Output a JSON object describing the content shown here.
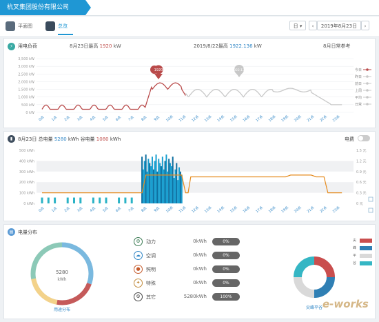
{
  "header": {
    "company": "杭叉集团股份有限公司"
  },
  "tabs": {
    "floor_plan": "平面图",
    "overview": "总览"
  },
  "date_picker": {
    "mode": "日",
    "date": "2019年8月23日",
    "prev": "‹",
    "next": "›"
  },
  "load_panel": {
    "title": "用电负荷",
    "peak_today": {
      "label": "8月23日最高",
      "value": "1920",
      "unit": "kW"
    },
    "peak_ref": {
      "label": "2019/8/22最高",
      "value": "1922.136",
      "unit": "kW"
    },
    "ref_note": "8月日常参考",
    "y_ticks": [
      "3,500 kW",
      "3,000 kW",
      "2,500 kW",
      "2,000 kW",
      "1,500 kW",
      "1,000 kW",
      "500 kW",
      "0 kW"
    ],
    "x_ticks": [
      "0点",
      "1点",
      "2点",
      "3点",
      "4点",
      "5点",
      "6点",
      "7点",
      "8点",
      "9点",
      "10点",
      "11点",
      "12点",
      "13点",
      "14点",
      "15点",
      "16点",
      "17点",
      "18点",
      "19点",
      "20点",
      "21点",
      "22点",
      "23点"
    ],
    "marker_today": "1920",
    "marker_ref": "1922.136",
    "legend": [
      {
        "label": "今日",
        "color": "#b94a4a"
      },
      {
        "label": "昨日",
        "color": "#c8c8c8"
      },
      {
        "label": "前日",
        "color": "#c8c8c8"
      },
      {
        "label": "上周",
        "color": "#c8c8c8"
      },
      {
        "label": "平均",
        "color": "#c8c8c8"
      },
      {
        "label": "日常",
        "color": "#c8c8c8"
      }
    ]
  },
  "energy_panel": {
    "title_date": "8月23日",
    "total_label": "总电量",
    "total_value": "5280",
    "total_unit": "kWh",
    "valley_label": "谷电量",
    "valley_value": "1080",
    "valley_unit": "kWh",
    "toggle_label": "电费",
    "y_ticks_left": [
      "500 kWh",
      "400 kWh",
      "300 kWh",
      "200 kWh",
      "100 kWh",
      "0 kWh"
    ],
    "y_ticks_right": [
      "1.5 元",
      "1.2 元",
      "0.9 元",
      "0.6 元",
      "0.3 元",
      "0 元"
    ],
    "x_ticks": [
      "0点",
      "1点",
      "2点",
      "3点",
      "4点",
      "5点",
      "6点",
      "7点",
      "8点",
      "9点",
      "10点",
      "11点",
      "12点",
      "13点",
      "14点",
      "15点",
      "16点",
      "17点",
      "18点",
      "19点",
      "20点",
      "21点",
      "22点",
      "23点"
    ]
  },
  "dist_panel": {
    "title": "电量分布",
    "donut_value": "5280",
    "donut_unit": "kWh",
    "donut_caption": "用途分布",
    "categories": [
      {
        "label": "动力",
        "value": "0kWh",
        "pct": "0%",
        "icon": "gear-icon"
      },
      {
        "label": "空调",
        "value": "0kWh",
        "pct": "0%",
        "icon": "cloud-icon"
      },
      {
        "label": "照明",
        "value": "0kWh",
        "pct": "0%",
        "icon": "bulb-icon"
      },
      {
        "label": "特殊",
        "value": "0kWh",
        "pct": "0%",
        "icon": "special-icon"
      },
      {
        "label": "其它",
        "value": "5280kWh",
        "pct": "100%",
        "icon": "other-icon"
      }
    ],
    "pie_caption": "尖峰平谷",
    "pie_legend": [
      {
        "label": "尖",
        "color": "#c94e4e"
      },
      {
        "label": "峰",
        "color": "#2f7fb4"
      },
      {
        "label": "平",
        "color": "#d9d9d9"
      },
      {
        "label": "谷",
        "color": "#35b6c4"
      }
    ],
    "watermark": "e-works"
  },
  "colors": {
    "accent": "#1f97d4",
    "today": "#b94a4a",
    "ref": "#c8c8c8",
    "bar": "#1a9fd0",
    "bar_dark": "#0e6fa0",
    "price": "#e58a1c"
  }
}
